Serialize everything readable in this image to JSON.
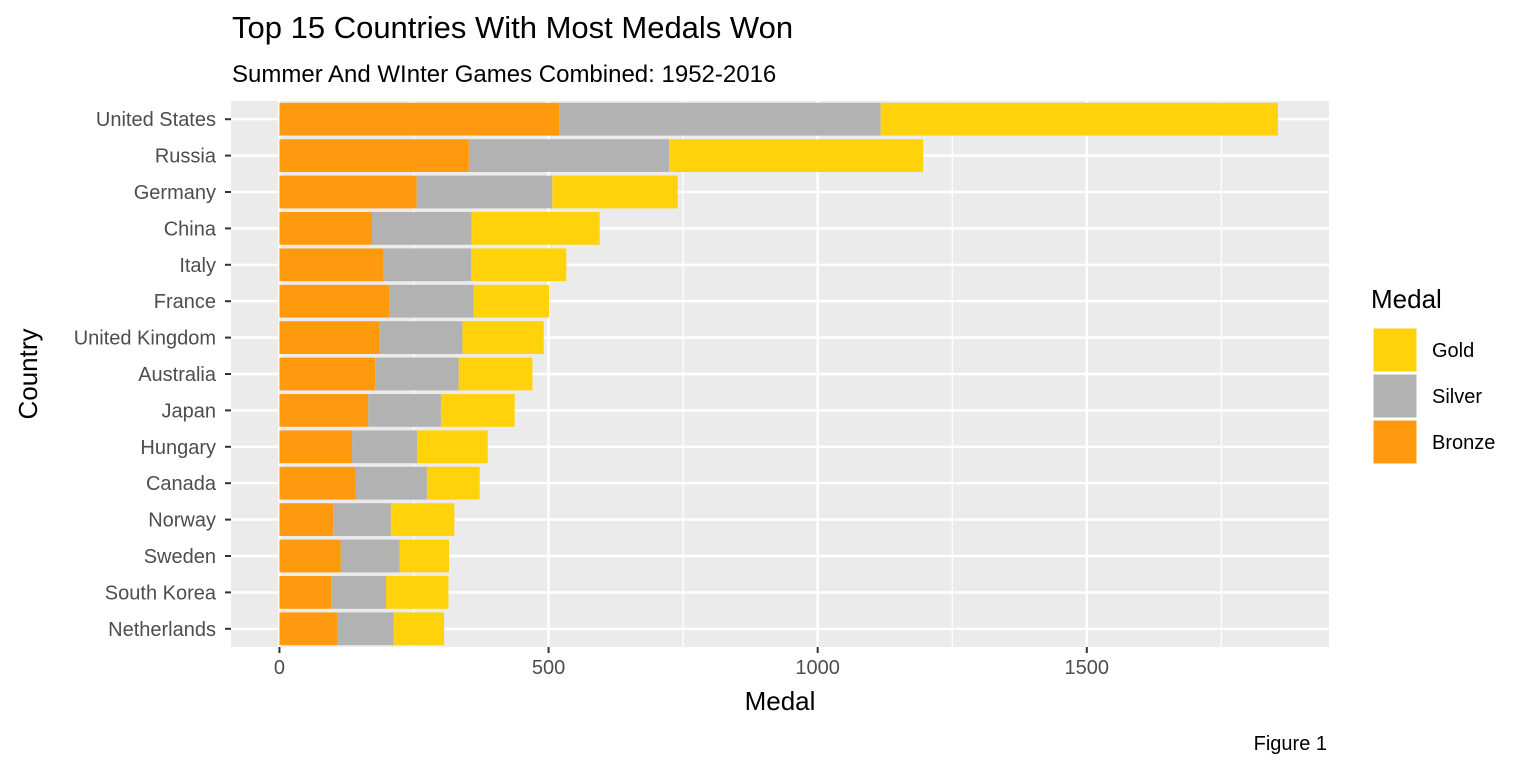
{
  "chart_data": {
    "type": "bar",
    "orientation": "horizontal",
    "stacked": true,
    "title": "Top 15 Countries With Most Medals Won",
    "subtitle": "Summer And WInter Games Combined: 1952-2016",
    "xlabel": "Medal",
    "ylabel": "Country",
    "caption": "Figure 1",
    "xlim": [
      -90,
      1950
    ],
    "x_ticks": [
      0,
      500,
      1000,
      1500
    ],
    "grid": true,
    "legend_title": "Medal",
    "legend_position": "right",
    "categories": [
      "United States",
      "Russia",
      "Germany",
      "China",
      "Italy",
      "France",
      "United Kingdom",
      "Australia",
      "Japan",
      "Hungary",
      "Canada",
      "Norway",
      "Sweden",
      "South Korea",
      "Netherlands"
    ],
    "series": [
      {
        "name": "Bronze",
        "color": "#ff9a0e",
        "values": [
          520,
          352,
          255,
          172,
          194,
          205,
          185,
          178,
          165,
          135,
          142,
          100,
          114,
          96,
          107
        ]
      },
      {
        "name": "Silver",
        "color": "#b2b2b2",
        "values": [
          597,
          372,
          252,
          185,
          162,
          156,
          155,
          155,
          135,
          121,
          132,
          107,
          109,
          102,
          105
        ]
      },
      {
        "name": "Gold",
        "color": "#ffd20c",
        "values": [
          738,
          472,
          233,
          238,
          177,
          140,
          151,
          137,
          137,
          131,
          98,
          118,
          92,
          116,
          94
        ]
      }
    ],
    "legend_order": [
      "Gold",
      "Silver",
      "Bronze"
    ]
  }
}
